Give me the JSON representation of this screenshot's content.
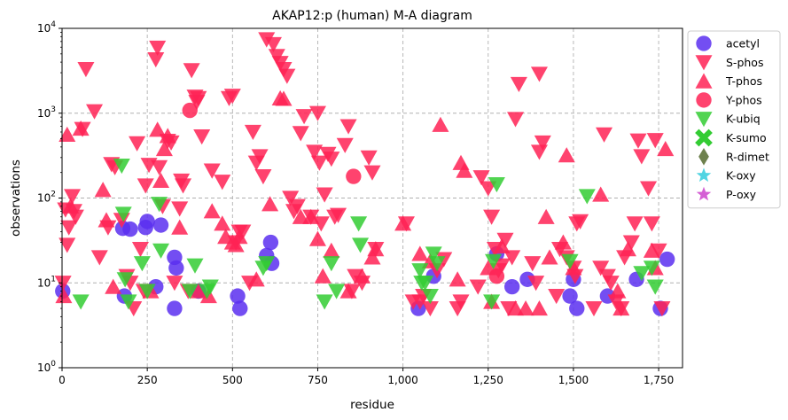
{
  "chart_data": {
    "type": "scatter",
    "title": "AKAP12:p (human) M-A diagram",
    "xlabel": "residue",
    "ylabel": "observations",
    "xlim": [
      0,
      1820
    ],
    "ylim": [
      1,
      10000
    ],
    "yscale": "log",
    "x_ticks": [
      0,
      250,
      500,
      750,
      1000,
      1250,
      1500,
      1750
    ],
    "x_tick_labels": [
      "0",
      "250",
      "500",
      "750",
      "1,000",
      "1,250",
      "1,500",
      "1,750"
    ],
    "y_ticks": [
      1,
      10,
      100,
      1000,
      10000
    ],
    "y_tick_labels": [
      {
        "base": "10",
        "exp": "0"
      },
      {
        "base": "10",
        "exp": "1"
      },
      {
        "base": "10",
        "exp": "2"
      },
      {
        "base": "10",
        "exp": "3"
      },
      {
        "base": "10",
        "exp": "4"
      }
    ],
    "grid": true,
    "legend_position": "outside-right",
    "series": [
      {
        "name": "acetyl",
        "marker": "circle",
        "color": "#5b2ff0",
        "points": [
          [
            2,
            8
          ],
          [
            178,
            44
          ],
          [
            183,
            7
          ],
          [
            200,
            43
          ],
          [
            245,
            45
          ],
          [
            250,
            53
          ],
          [
            275,
            9
          ],
          [
            290,
            48
          ],
          [
            330,
            20
          ],
          [
            335,
            15
          ],
          [
            330,
            5
          ],
          [
            400,
            8
          ],
          [
            515,
            7
          ],
          [
            522,
            5
          ],
          [
            600,
            21
          ],
          [
            612,
            30
          ],
          [
            615,
            17
          ],
          [
            1045,
            5
          ],
          [
            1090,
            12
          ],
          [
            1275,
            22
          ],
          [
            1320,
            9
          ],
          [
            1365,
            11
          ],
          [
            1490,
            7
          ],
          [
            1500,
            11
          ],
          [
            1510,
            5
          ],
          [
            1600,
            7
          ],
          [
            1685,
            11
          ],
          [
            1755,
            5
          ],
          [
            1775,
            19
          ]
        ]
      },
      {
        "name": "S-phos",
        "marker": "triangle-down",
        "color": "#ff2255",
        "points": [
          [
            3,
            10
          ],
          [
            10,
            73
          ],
          [
            20,
            45
          ],
          [
            15,
            28
          ],
          [
            30,
            105
          ],
          [
            35,
            70
          ],
          [
            40,
            60
          ],
          [
            60,
            650
          ],
          [
            70,
            3300
          ],
          [
            95,
            1050
          ],
          [
            110,
            20
          ],
          [
            135,
            45
          ],
          [
            145,
            250
          ],
          [
            155,
            230
          ],
          [
            175,
            55
          ],
          [
            190,
            12
          ],
          [
            200,
            10
          ],
          [
            210,
            5
          ],
          [
            220,
            440
          ],
          [
            230,
            25
          ],
          [
            240,
            8
          ],
          [
            245,
            140
          ],
          [
            255,
            245
          ],
          [
            275,
            4300
          ],
          [
            280,
            5900
          ],
          [
            285,
            230
          ],
          [
            295,
            80
          ],
          [
            310,
            470
          ],
          [
            320,
            450
          ],
          [
            330,
            10
          ],
          [
            345,
            75
          ],
          [
            350,
            160
          ],
          [
            355,
            140
          ],
          [
            370,
            8
          ],
          [
            380,
            3200
          ],
          [
            390,
            1560
          ],
          [
            395,
            1350
          ],
          [
            400,
            1500
          ],
          [
            410,
            530
          ],
          [
            440,
            210
          ],
          [
            470,
            155
          ],
          [
            490,
            1500
          ],
          [
            500,
            1600
          ],
          [
            510,
            30
          ],
          [
            520,
            40
          ],
          [
            530,
            40
          ],
          [
            550,
            10
          ],
          [
            560,
            600
          ],
          [
            570,
            260
          ],
          [
            580,
            310
          ],
          [
            590,
            180
          ],
          [
            600,
            7400
          ],
          [
            620,
            6500
          ],
          [
            630,
            4700
          ],
          [
            640,
            3900
          ],
          [
            650,
            3300
          ],
          [
            660,
            2750
          ],
          [
            670,
            100
          ],
          [
            680,
            70
          ],
          [
            690,
            80
          ],
          [
            700,
            580
          ],
          [
            710,
            920
          ],
          [
            730,
            60
          ],
          [
            740,
            350
          ],
          [
            750,
            1000
          ],
          [
            755,
            260
          ],
          [
            760,
            50
          ],
          [
            770,
            110
          ],
          [
            780,
            330
          ],
          [
            790,
            290
          ],
          [
            800,
            60
          ],
          [
            810,
            63
          ],
          [
            830,
            420
          ],
          [
            840,
            700
          ],
          [
            850,
            8
          ],
          [
            860,
            12
          ],
          [
            880,
            10
          ],
          [
            900,
            300
          ],
          [
            910,
            200
          ],
          [
            920,
            25
          ],
          [
            1010,
            50
          ],
          [
            1030,
            6
          ],
          [
            1050,
            6
          ],
          [
            1060,
            7
          ],
          [
            1080,
            5
          ],
          [
            1100,
            14
          ],
          [
            1120,
            19
          ],
          [
            1160,
            5
          ],
          [
            1170,
            6
          ],
          [
            1220,
            9
          ],
          [
            1230,
            175
          ],
          [
            1250,
            130
          ],
          [
            1260,
            60
          ],
          [
            1270,
            25
          ],
          [
            1280,
            14
          ],
          [
            1290,
            16
          ],
          [
            1300,
            32
          ],
          [
            1310,
            5
          ],
          [
            1320,
            20
          ],
          [
            1330,
            850
          ],
          [
            1340,
            2200
          ],
          [
            1380,
            17
          ],
          [
            1390,
            10
          ],
          [
            1400,
            2900
          ],
          [
            1410,
            450
          ],
          [
            1400,
            350
          ],
          [
            1450,
            7
          ],
          [
            1460,
            25
          ],
          [
            1480,
            20
          ],
          [
            1500,
            15
          ],
          [
            1505,
            12
          ],
          [
            1510,
            50
          ],
          [
            1520,
            53
          ],
          [
            1560,
            5
          ],
          [
            1580,
            15
          ],
          [
            1590,
            560
          ],
          [
            1600,
            12
          ],
          [
            1610,
            10
          ],
          [
            1625,
            6
          ],
          [
            1640,
            5
          ],
          [
            1650,
            20
          ],
          [
            1670,
            30
          ],
          [
            1680,
            50
          ],
          [
            1690,
            475
          ],
          [
            1700,
            310
          ],
          [
            1720,
            130
          ],
          [
            1730,
            50
          ],
          [
            1740,
            480
          ],
          [
            1750,
            24
          ],
          [
            1760,
            5
          ]
        ]
      },
      {
        "name": "T-phos",
        "marker": "triangle-up",
        "color": "#ff2255",
        "points": [
          [
            5,
            7
          ],
          [
            15,
            560
          ],
          [
            25,
            80
          ],
          [
            55,
            660
          ],
          [
            120,
            125
          ],
          [
            130,
            55
          ],
          [
            150,
            9
          ],
          [
            260,
            8
          ],
          [
            280,
            640
          ],
          [
            290,
            160
          ],
          [
            300,
            380
          ],
          [
            310,
            540
          ],
          [
            345,
            45
          ],
          [
            400,
            8
          ],
          [
            430,
            7
          ],
          [
            440,
            70
          ],
          [
            470,
            50
          ],
          [
            480,
            35
          ],
          [
            500,
            30
          ],
          [
            510,
            28
          ],
          [
            520,
            35
          ],
          [
            570,
            11
          ],
          [
            610,
            85
          ],
          [
            640,
            1500
          ],
          [
            650,
            1480
          ],
          [
            700,
            60
          ],
          [
            730,
            60
          ],
          [
            750,
            33
          ],
          [
            765,
            12
          ],
          [
            790,
            24
          ],
          [
            840,
            8
          ],
          [
            880,
            12
          ],
          [
            910,
            20
          ],
          [
            920,
            25
          ],
          [
            1000,
            50
          ],
          [
            1050,
            22
          ],
          [
            1080,
            18
          ],
          [
            1110,
            730
          ],
          [
            1160,
            11
          ],
          [
            1170,
            260
          ],
          [
            1180,
            210
          ],
          [
            1250,
            15
          ],
          [
            1260,
            6
          ],
          [
            1290,
            27
          ],
          [
            1330,
            5
          ],
          [
            1360,
            5
          ],
          [
            1400,
            5
          ],
          [
            1420,
            60
          ],
          [
            1430,
            20
          ],
          [
            1470,
            30
          ],
          [
            1480,
            320
          ],
          [
            1500,
            15
          ],
          [
            1580,
            110
          ],
          [
            1630,
            8
          ],
          [
            1640,
            5
          ],
          [
            1660,
            25
          ],
          [
            1730,
            24
          ],
          [
            1740,
            15
          ],
          [
            1770,
            380
          ]
        ]
      },
      {
        "name": "Y-phos",
        "marker": "circle",
        "color": "#ff2255",
        "points": [
          [
            375,
            1080
          ],
          [
            855,
            180
          ],
          [
            1275,
            12
          ]
        ]
      },
      {
        "name": "K-ubiq",
        "marker": "triangle-down",
        "color": "#33cc33",
        "points": [
          [
            55,
            6
          ],
          [
            175,
            240
          ],
          [
            180,
            65
          ],
          [
            185,
            11
          ],
          [
            195,
            6
          ],
          [
            235,
            17
          ],
          [
            250,
            8
          ],
          [
            285,
            85
          ],
          [
            290,
            24
          ],
          [
            375,
            8
          ],
          [
            390,
            16
          ],
          [
            425,
            8
          ],
          [
            435,
            9
          ],
          [
            590,
            15
          ],
          [
            600,
            17
          ],
          [
            770,
            6
          ],
          [
            790,
            17
          ],
          [
            805,
            8
          ],
          [
            870,
            50
          ],
          [
            875,
            28
          ],
          [
            1050,
            14
          ],
          [
            1055,
            10
          ],
          [
            1065,
            10
          ],
          [
            1080,
            7
          ],
          [
            1090,
            22
          ],
          [
            1100,
            17
          ],
          [
            1260,
            6
          ],
          [
            1265,
            18
          ],
          [
            1275,
            145
          ],
          [
            1490,
            18
          ],
          [
            1540,
            105
          ],
          [
            1700,
            13
          ],
          [
            1730,
            15
          ],
          [
            1740,
            9
          ]
        ]
      },
      {
        "name": "K-sumo",
        "marker": "x",
        "color": "#33cc33",
        "points": []
      },
      {
        "name": "R-dimet",
        "marker": "diamond",
        "color": "#556b2f",
        "points": []
      },
      {
        "name": "K-oxy",
        "marker": "star",
        "color": "#33ccdd",
        "points": []
      },
      {
        "name": "P-oxy",
        "marker": "star",
        "color": "#cc44cc",
        "points": []
      }
    ]
  }
}
